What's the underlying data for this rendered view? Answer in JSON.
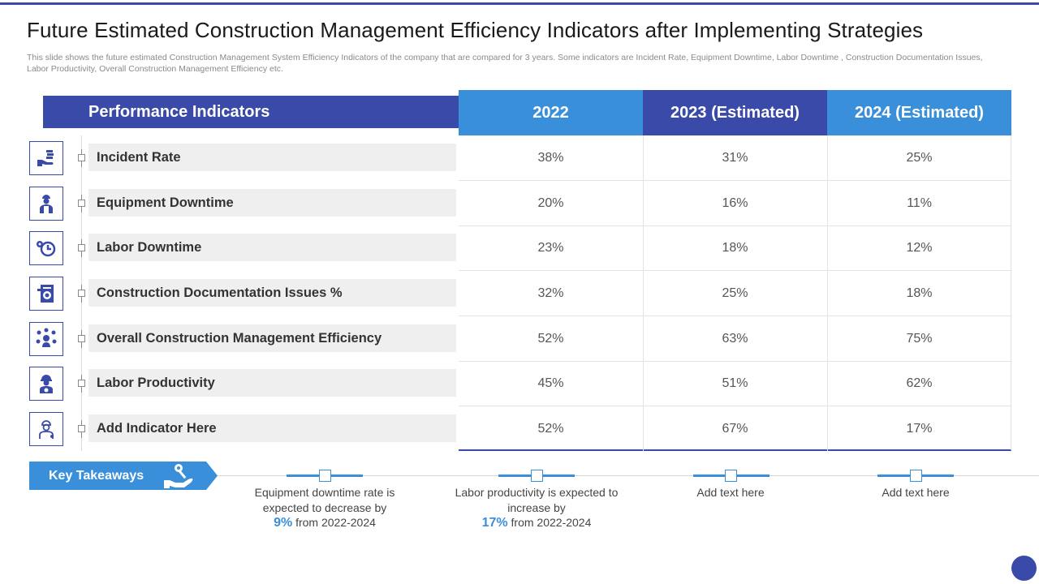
{
  "slide": {
    "title": "Future Estimated Construction  Management Efficiency Indicators after Implementing Strategies",
    "subtitle": "This slide shows the future estimated Construction Management System Efficiency Indicators of the company that are compared for 3 years. Some indicators are Incident Rate, Equipment Downtime, Labor Downtime , Construction Documentation Issues, Labor Productivity, Overall Construction Management Efficiency etc."
  },
  "table": {
    "header": {
      "indicator": "Performance Indicators",
      "col1": "2022",
      "col2": "2023 (Estimated)",
      "col3": "2024 (Estimated)"
    },
    "rows": [
      {
        "label": "Incident Rate",
        "icon": "hand-coins-icon",
        "v2022": "38%",
        "v2023": "31%",
        "v2024": "25%"
      },
      {
        "label": "Equipment Downtime",
        "icon": "worker-icon",
        "v2022": "20%",
        "v2023": "16%",
        "v2024": "11%"
      },
      {
        "label": "Labor Downtime",
        "icon": "clock-gear-icon",
        "v2022": "23%",
        "v2023": "18%",
        "v2024": "12%"
      },
      {
        "label": "Construction Documentation Issues %",
        "icon": "document-gear-icon",
        "v2022": "32%",
        "v2023": "25%",
        "v2024": "18%"
      },
      {
        "label": "Overall  Construction Management Efficiency",
        "icon": "network-person-icon",
        "v2022": "52%",
        "v2023": "63%",
        "v2024": "75%"
      },
      {
        "label": "Labor Productivity",
        "icon": "helmet-worker-icon",
        "v2022": "45%",
        "v2023": "51%",
        "v2024": "62%"
      },
      {
        "label": "Add Indicator Here",
        "icon": "engineer-icon",
        "v2022": "52%",
        "v2023": "67%",
        "v2024": "17%"
      }
    ]
  },
  "takeaways": {
    "label": "Key Takeaways",
    "icon": "hand-key-icon",
    "items": [
      {
        "pre": "Equipment downtime rate is expected to decrease by",
        "num": "9%",
        "post": "from 2022-2024"
      },
      {
        "pre": "Labor productivity is expected to increase by",
        "num": "17%",
        "post": "from 2022-2024"
      },
      {
        "pre": "Add text here",
        "num": "",
        "post": ""
      },
      {
        "pre": "Add text here",
        "num": "",
        "post": ""
      }
    ]
  },
  "colors": {
    "navy": "#3a4aa8",
    "blue": "#3a8fdb"
  }
}
